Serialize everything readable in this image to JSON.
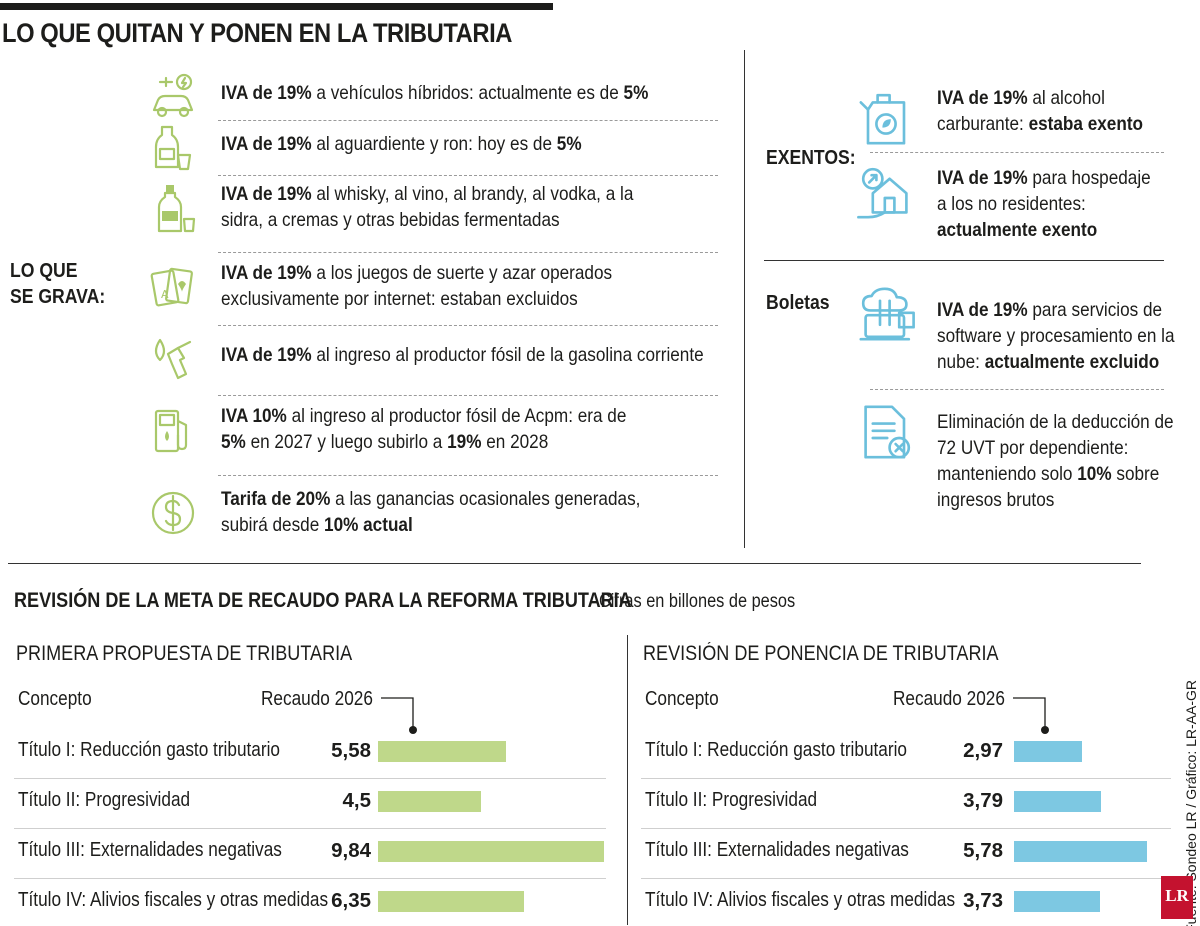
{
  "header": {
    "title": "LO QUE QUITAN Y PONEN EN LA TRIBUTARIA"
  },
  "left": {
    "label_line1": "LO QUE",
    "label_line2": "SE GRAVA:",
    "icon_color": "#a9c86a",
    "items": [
      {
        "icon": "hybrid-car-icon",
        "parts": [
          {
            "b": true,
            "t": "IVA de 19%"
          },
          {
            "t": " a vehículos híbridos: actualmente es de "
          },
          {
            "b": true,
            "t": "5%"
          }
        ]
      },
      {
        "icon": "bottle-glass-icon",
        "parts": [
          {
            "b": true,
            "t": "IVA de 19%"
          },
          {
            "t": " al aguardiente y ron: hoy es de "
          },
          {
            "b": true,
            "t": "5%"
          }
        ]
      },
      {
        "icon": "whisky-bottle-icon",
        "parts": [
          {
            "b": true,
            "t": "IVA de 19%"
          },
          {
            "t": " al whisky, al vino, al brandy, al vodka, a la"
          }
        ],
        "line2": [
          {
            "t": "sidra, a cremas y otras bebidas fermentadas"
          }
        ]
      },
      {
        "icon": "playing-cards-icon",
        "parts": [
          {
            "b": true,
            "t": "IVA de 19%"
          },
          {
            "t": " a los juegos de suerte y azar operados"
          }
        ],
        "line2": [
          {
            "t": "exclusivamente por internet: estaban excluidos"
          }
        ]
      },
      {
        "icon": "fuel-nozzle-icon",
        "parts": [
          {
            "b": true,
            "t": "IVA de 19%"
          },
          {
            "t": " al ingreso al productor fósil de la gasolina corriente"
          }
        ]
      },
      {
        "icon": "gas-pump-icon",
        "parts": [
          {
            "b": true,
            "t": "IVA 10%"
          },
          {
            "t": " al ingreso al productor fósil de Acpm: era de"
          }
        ],
        "line2": [
          {
            "b": true,
            "t": "5%"
          },
          {
            "t": " en 2027 y luego subirlo a "
          },
          {
            "b": true,
            "t": "19%"
          },
          {
            "t": " en 2028"
          }
        ]
      },
      {
        "icon": "dollar-coin-icon",
        "parts": [
          {
            "b": true,
            "t": "Tarifa de 20%"
          },
          {
            "t": " a las ganancias ocasionales generadas,"
          }
        ],
        "line2": [
          {
            "t": "subirá desde "
          },
          {
            "b": true,
            "t": "10% actual"
          }
        ]
      }
    ]
  },
  "right": {
    "icon_color": "#6bbfdc",
    "exentos_label": "EXENTOS:",
    "boletas_label": "Boletas",
    "exentos": [
      {
        "icon": "jerrycan-leaf-icon",
        "lines": [
          [
            {
              "b": true,
              "t": "IVA de 19%"
            },
            {
              "t": " al alcohol"
            }
          ],
          [
            {
              "t": "carburante: "
            },
            {
              "b": true,
              "t": "estaba exento"
            }
          ]
        ]
      },
      {
        "icon": "house-hand-icon",
        "lines": [
          [
            {
              "b": true,
              "t": "IVA de 19%"
            },
            {
              "t": " para hospedaje"
            }
          ],
          [
            {
              "t": "a los no residentes:"
            }
          ],
          [
            {
              "b": true,
              "t": "actualmente exento"
            }
          ]
        ]
      }
    ],
    "boletas": [
      {
        "icon": "cloud-computer-icon",
        "lines": [
          [
            {
              "b": true,
              "t": "IVA de 19%"
            },
            {
              "t": " para servicios de"
            }
          ],
          [
            {
              "t": "software y procesamiento en la"
            }
          ],
          [
            {
              "t": "nube: "
            },
            {
              "b": true,
              "t": "actualmente excluido"
            }
          ]
        ]
      },
      {
        "icon": "document-cancel-icon",
        "lines": [
          [
            {
              "t": "Eliminación de la deducción de"
            }
          ],
          [
            {
              "t": "72 UVT por dependiente:"
            }
          ],
          [
            {
              "t": "manteniendo solo "
            },
            {
              "b": true,
              "t": "10%"
            },
            {
              "t": " sobre"
            }
          ],
          [
            {
              "t": "ingresos brutos"
            }
          ]
        ]
      }
    ]
  },
  "bottom": {
    "title": "REVISIÓN DE LA META DE RECAUDO PARA LA REFORMA TRIBUTARIA",
    "note": "Cifras en billones de pesos"
  },
  "chart_data": [
    {
      "type": "bar",
      "title": "PRIMERA PROPUESTA DE TRIBUTARIA",
      "col_concept": "Concepto",
      "col_value": "Recaudo 2026",
      "color": "#bfd88a",
      "categories": [
        {
          "bold": "Título I:",
          "rest": " Reducción gasto tributario"
        },
        {
          "bold": "Título II:",
          "rest": " Progresividad"
        },
        {
          "bold": "Título III:",
          "rest": " Externalidades negativas"
        },
        {
          "bold": "Título IV:",
          "rest": " Alivios fiscales y otras medidas"
        }
      ],
      "values": [
        5.58,
        4.5,
        9.84,
        6.35
      ],
      "labels": [
        "5,58",
        "4,5",
        "9,84",
        "6,35"
      ]
    },
    {
      "type": "bar",
      "title": "REVISIÓN DE PONENCIA DE TRIBUTARIA",
      "col_concept": "Concepto",
      "col_value": "Recaudo 2026",
      "color": "#7dc8e2",
      "categories": [
        {
          "bold": "Título I:",
          "rest": " Reducción gasto tributario"
        },
        {
          "bold": "Título II:",
          "rest": " Progresividad"
        },
        {
          "bold": "Título III:",
          "rest": " Externalidades negativas"
        },
        {
          "bold": "Título IV:",
          "rest": " Alivios fiscales y otras medidas"
        }
      ],
      "values": [
        2.97,
        3.79,
        5.78,
        3.73
      ],
      "labels": [
        "2,97",
        "3,79",
        "5,78",
        "3,73"
      ]
    }
  ],
  "footer": {
    "source": "Fuente: Sondeo LR / Gráfico: LR-AA-GR",
    "logo": "LR"
  }
}
